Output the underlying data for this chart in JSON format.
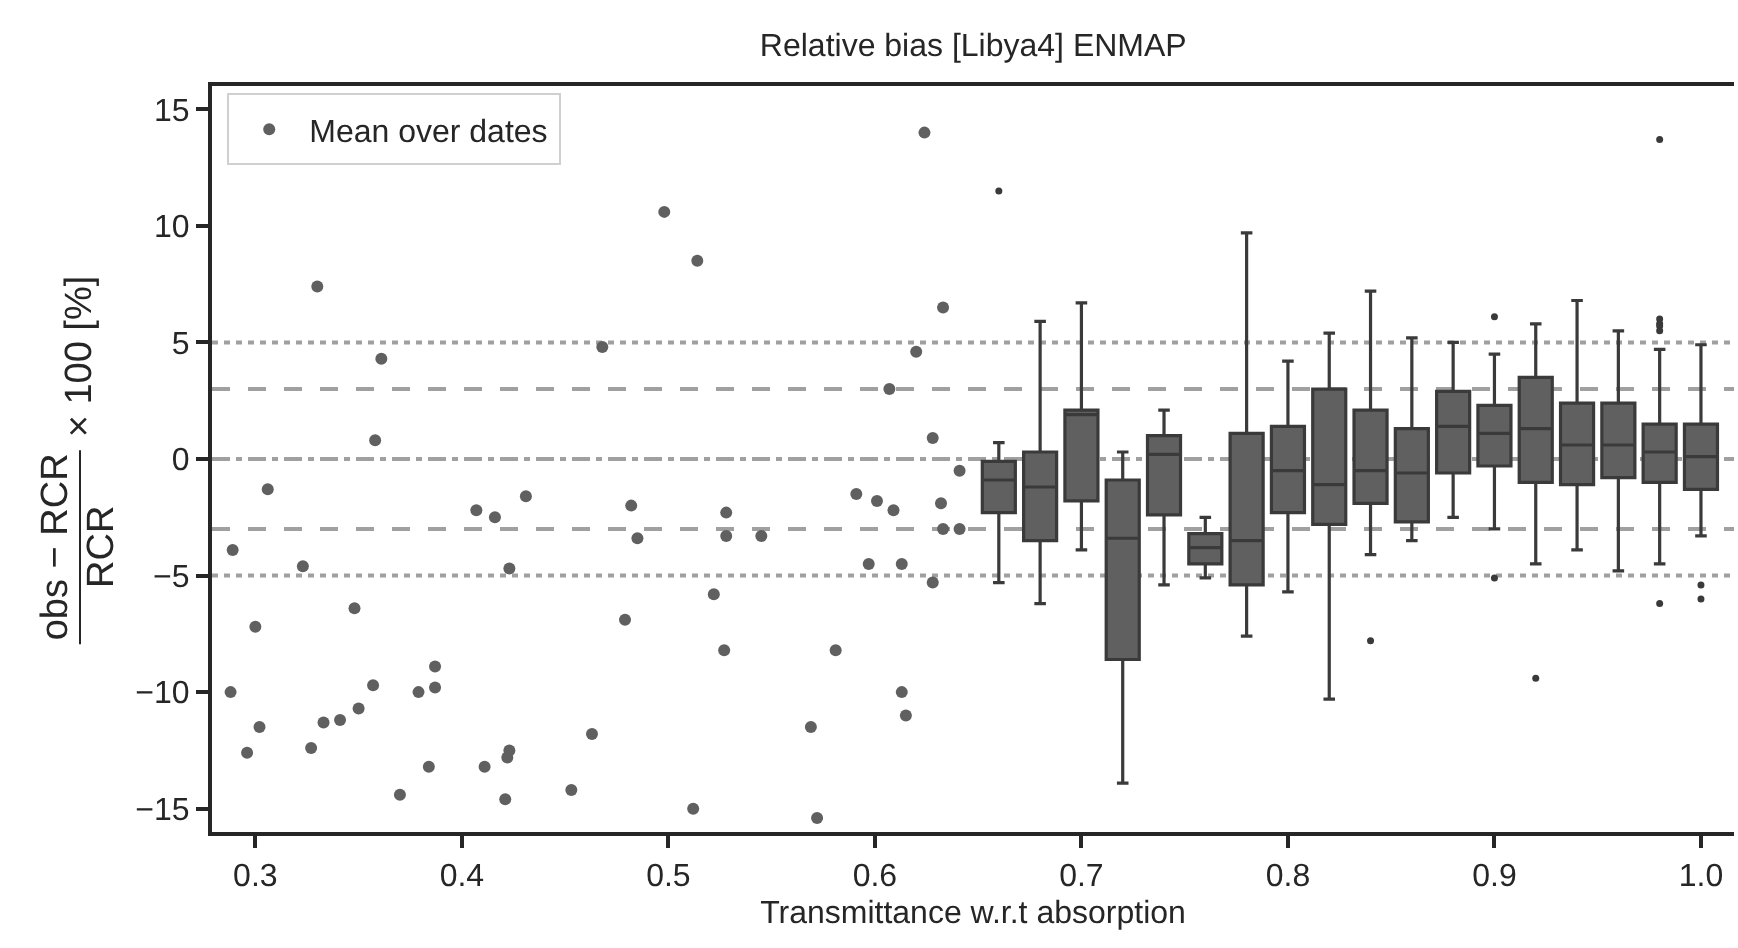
{
  "chart_data": {
    "type": "scatter",
    "title": "Relative bias [Libya4] ENMAP",
    "xlabel": "Transmittance w.r.t absorption",
    "ylabel": "obs − RCR\nRCR × 100 [%]",
    "xlim": [
      0.279,
      1.016
    ],
    "xticks": [
      0.3,
      0.4,
      0.5,
      0.6,
      0.7,
      0.8,
      0.9,
      {
        "value": 1.0,
        "label": "1.0"
      }
    ],
    "ylim": [
      -16,
      16
    ],
    "yticks": [
      {
        "value": -15,
        "label": "−15"
      },
      {
        "value": -10,
        "label": "−10"
      },
      {
        "value": -5,
        "label": "−5"
      },
      0,
      5,
      10,
      15
    ],
    "grid": false,
    "legend": "top left",
    "marker": "circle",
    "ref_lines": [
      {
        "axis": "y",
        "value": 5,
        "color": "#a0a0a0",
        "line_style": "dotted"
      },
      {
        "axis": "y",
        "value": 3,
        "color": "#a0a0a0",
        "line_style": "dashed"
      },
      {
        "axis": "y",
        "value": 0,
        "color": "#a0a0a0",
        "line_style": "dashdot"
      },
      {
        "axis": "y",
        "value": -3,
        "color": "#a0a0a0",
        "line_style": "dashed"
      },
      {
        "axis": "y",
        "value": -5,
        "color": "#a0a0a0",
        "line_style": "dotted"
      }
    ],
    "series": [
      {
        "name": "Mean over dates",
        "color": "#606060",
        "x": [
          0.288,
          0.289,
          0.296,
          0.3,
          0.302,
          0.306,
          0.323,
          0.327,
          0.33,
          0.333,
          0.341,
          0.348,
          0.35,
          0.357,
          0.358,
          0.361,
          0.37,
          0.379,
          0.384,
          0.387,
          0.387,
          0.407,
          0.411,
          0.416,
          0.422,
          0.423,
          0.421,
          0.423,
          0.431,
          0.453,
          0.463,
          0.468,
          0.479,
          0.482,
          0.485,
          0.498,
          0.512,
          0.514,
          0.522,
          0.527,
          0.528,
          0.528,
          0.545,
          0.569,
          0.572,
          0.581,
          0.591,
          0.597,
          0.601,
          0.607,
          0.609,
          0.613,
          0.613,
          0.615,
          0.62,
          0.624,
          0.628,
          0.628,
          0.632,
          0.633,
          0.633,
          0.641,
          0.641
        ],
        "values": [
          -10.0,
          -3.9,
          -12.6,
          -7.2,
          -11.5,
          -1.3,
          -4.6,
          -12.4,
          7.4,
          -11.3,
          -11.2,
          -6.4,
          -10.7,
          -9.7,
          0.8,
          4.3,
          -14.4,
          -10.0,
          -13.2,
          -8.9,
          -9.8,
          -2.2,
          -13.2,
          -2.5,
          -12.8,
          -12.5,
          -14.6,
          -4.7,
          -1.6,
          -14.2,
          -11.8,
          4.8,
          -6.9,
          -2.0,
          -3.4,
          10.6,
          -15.0,
          8.5,
          -5.8,
          -8.2,
          -2.3,
          -3.3,
          -3.3,
          -11.5,
          -15.4,
          -8.2,
          -1.5,
          -4.5,
          -1.8,
          3.0,
          -2.2,
          -4.5,
          -10.0,
          -11.0,
          4.6,
          14.0,
          0.9,
          -5.3,
          -1.9,
          -3.0,
          6.5,
          -3.0,
          -0.5
        ]
      },
      {
        "type": "box",
        "color": "#606060",
        "x": [
          0.66,
          0.68,
          0.7,
          0.72,
          0.74,
          0.76,
          0.78,
          0.8,
          0.82,
          0.84,
          0.86,
          0.88,
          0.9,
          0.92,
          0.94,
          0.96,
          0.98,
          1.0
        ],
        "boxes": [
          {
            "low": -5.3,
            "q1": -2.3,
            "median": -0.9,
            "q3": -0.1,
            "high": 0.7,
            "outliers": [
              11.5
            ]
          },
          {
            "low": -6.2,
            "q1": -3.5,
            "median": -1.2,
            "q3": 0.3,
            "high": 5.9
          },
          {
            "low": -3.9,
            "q1": -1.8,
            "median": 1.9,
            "q3": 2.1,
            "high": 6.7
          },
          {
            "low": -13.9,
            "q1": -8.6,
            "median": -3.4,
            "q3": -0.9,
            "high": 0.3
          },
          {
            "low": -5.4,
            "q1": -2.4,
            "median": 0.2,
            "q3": 1.0,
            "high": 2.1
          },
          {
            "low": -5.1,
            "q1": -4.5,
            "median": -3.8,
            "q3": -3.2,
            "high": -2.5
          },
          {
            "low": -7.6,
            "q1": -5.4,
            "median": -3.5,
            "q3": 1.1,
            "high": 9.7
          },
          {
            "low": -5.7,
            "q1": -2.3,
            "median": -0.5,
            "q3": 1.4,
            "high": 4.2
          },
          {
            "low": -10.3,
            "q1": -2.8,
            "median": -1.1,
            "q3": 3.0,
            "high": 5.4
          },
          {
            "low": -4.1,
            "q1": -1.9,
            "median": -0.5,
            "q3": 2.1,
            "high": 7.2,
            "outliers": [
              -7.8
            ]
          },
          {
            "low": -3.5,
            "q1": -2.7,
            "median": -0.6,
            "q3": 1.3,
            "high": 5.2
          },
          {
            "low": -2.5,
            "q1": -0.6,
            "median": 1.4,
            "q3": 2.9,
            "high": 5.0
          },
          {
            "low": -3.0,
            "q1": -0.3,
            "median": 1.1,
            "q3": 2.3,
            "high": 4.5,
            "outliers": [
              6.1,
              -5.1
            ]
          },
          {
            "low": -4.5,
            "q1": -1.0,
            "median": 1.3,
            "q3": 3.5,
            "high": 5.8,
            "outliers": [
              -9.4
            ]
          },
          {
            "low": -3.9,
            "q1": -1.1,
            "median": 0.6,
            "q3": 2.4,
            "high": 6.8
          },
          {
            "low": -4.8,
            "q1": -0.8,
            "median": 0.6,
            "q3": 2.4,
            "high": 5.5
          },
          {
            "low": -4.5,
            "q1": -1.0,
            "median": 0.3,
            "q3": 1.5,
            "high": 4.7,
            "outliers": [
              13.7,
              6.0,
              5.8,
              5.7,
              5.5,
              -6.2
            ]
          },
          {
            "low": -3.3,
            "q1": -1.3,
            "median": 0.1,
            "q3": 1.5,
            "high": 4.9,
            "outliers": [
              -5.4,
              -6.0
            ]
          }
        ]
      }
    ]
  }
}
